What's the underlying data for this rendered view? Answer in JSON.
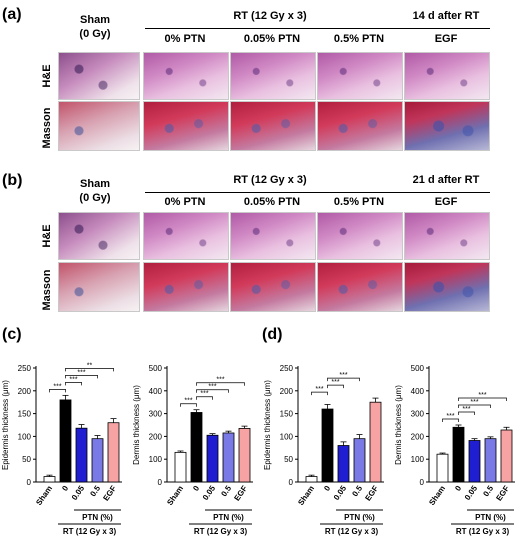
{
  "panel_labels": [
    "(a)",
    "(b)",
    "(c)",
    "(d)"
  ],
  "histology": [
    {
      "sham_label_line1": "Sham",
      "sham_label_line2": "(0 Gy)",
      "rt_header": "RT (12 Gy x 3)",
      "after_header": "14 d after RT",
      "columns": [
        "0% PTN",
        "0.05% PTN",
        "0.5% PTN",
        "EGF"
      ],
      "rows": [
        "H&E",
        "Masson"
      ]
    },
    {
      "sham_label_line1": "Sham",
      "sham_label_line2": "(0 Gy)",
      "rt_header": "RT (12 Gy x 3)",
      "after_header": "21 d after RT",
      "columns": [
        "0% PTN",
        "0.05% PTN",
        "0.5% PTN",
        "EGF"
      ],
      "rows": [
        "H&E",
        "Masson"
      ]
    }
  ],
  "colors": {
    "sham": "#ffffff",
    "zero": "#000000",
    "ptn005": "#1f1fd1",
    "ptn05": "#7a7ae6",
    "egf": "#f7a3a3"
  },
  "chart_data": [
    {
      "type": "bar",
      "panel": "(c)",
      "categories": [
        "Sham",
        "0",
        "0.05",
        "0.5",
        "EGF"
      ],
      "values": [
        12,
        180,
        118,
        95,
        130
      ],
      "errors": [
        3,
        10,
        8,
        7,
        9
      ],
      "ylabel": "Epidermis thickness (μm)",
      "ylim": [
        0,
        250
      ],
      "yticks": [
        0,
        50,
        100,
        150,
        200,
        250
      ],
      "group_label": "PTN (%)",
      "treatment_label": "RT (12 Gy x 3)",
      "significance": [
        {
          "from": 0,
          "to": 1,
          "label": "***"
        },
        {
          "from": 1,
          "to": 2,
          "label": "***"
        },
        {
          "from": 1,
          "to": 3,
          "label": "***"
        },
        {
          "from": 1,
          "to": 4,
          "label": "**"
        }
      ]
    },
    {
      "type": "bar",
      "panel": "(c)",
      "categories": [
        "Sham",
        "0",
        "0.05",
        "0.5",
        "EGF"
      ],
      "values": [
        130,
        305,
        205,
        215,
        235
      ],
      "errors": [
        6,
        12,
        7,
        8,
        10
      ],
      "ylabel": "Dermis thickness (μm)",
      "ylim": [
        0,
        500
      ],
      "yticks": [
        0,
        100,
        200,
        300,
        400,
        500
      ],
      "group_label": "PTN (%)",
      "treatment_label": "RT (12 Gy x 3)",
      "significance": [
        {
          "from": 0,
          "to": 1,
          "label": "***"
        },
        {
          "from": 1,
          "to": 2,
          "label": "***"
        },
        {
          "from": 1,
          "to": 3,
          "label": "***"
        },
        {
          "from": 1,
          "to": 4,
          "label": "***"
        }
      ]
    },
    {
      "type": "bar",
      "panel": "(d)",
      "categories": [
        "Sham",
        "0",
        "0.05",
        "0.5",
        "EGF"
      ],
      "values": [
        12,
        160,
        80,
        95,
        175
      ],
      "errors": [
        3,
        10,
        8,
        9,
        9
      ],
      "ylabel": "Epidermis thickness (μm)",
      "ylim": [
        0,
        250
      ],
      "yticks": [
        0,
        50,
        100,
        150,
        200,
        250
      ],
      "group_label": "PTN (%)",
      "treatment_label": "RT (12 Gy x 3)",
      "significance": [
        {
          "from": 0,
          "to": 1,
          "label": "***"
        },
        {
          "from": 1,
          "to": 2,
          "label": "***"
        },
        {
          "from": 1,
          "to": 3,
          "label": "***"
        }
      ]
    },
    {
      "type": "bar",
      "panel": "(d)",
      "categories": [
        "Sham",
        "0",
        "0.05",
        "0.5",
        "EGF"
      ],
      "values": [
        122,
        240,
        182,
        190,
        228
      ],
      "errors": [
        5,
        10,
        8,
        8,
        12
      ],
      "ylabel": "Dermis thickness (μm)",
      "ylim": [
        0,
        500
      ],
      "yticks": [
        0,
        100,
        200,
        300,
        400,
        500
      ],
      "group_label": "PTN (%)",
      "treatment_label": "RT (12 Gy x 3)",
      "significance": [
        {
          "from": 0,
          "to": 1,
          "label": "***"
        },
        {
          "from": 1,
          "to": 2,
          "label": "***"
        },
        {
          "from": 1,
          "to": 3,
          "label": "***"
        },
        {
          "from": 1,
          "to": 4,
          "label": "***"
        }
      ]
    }
  ]
}
